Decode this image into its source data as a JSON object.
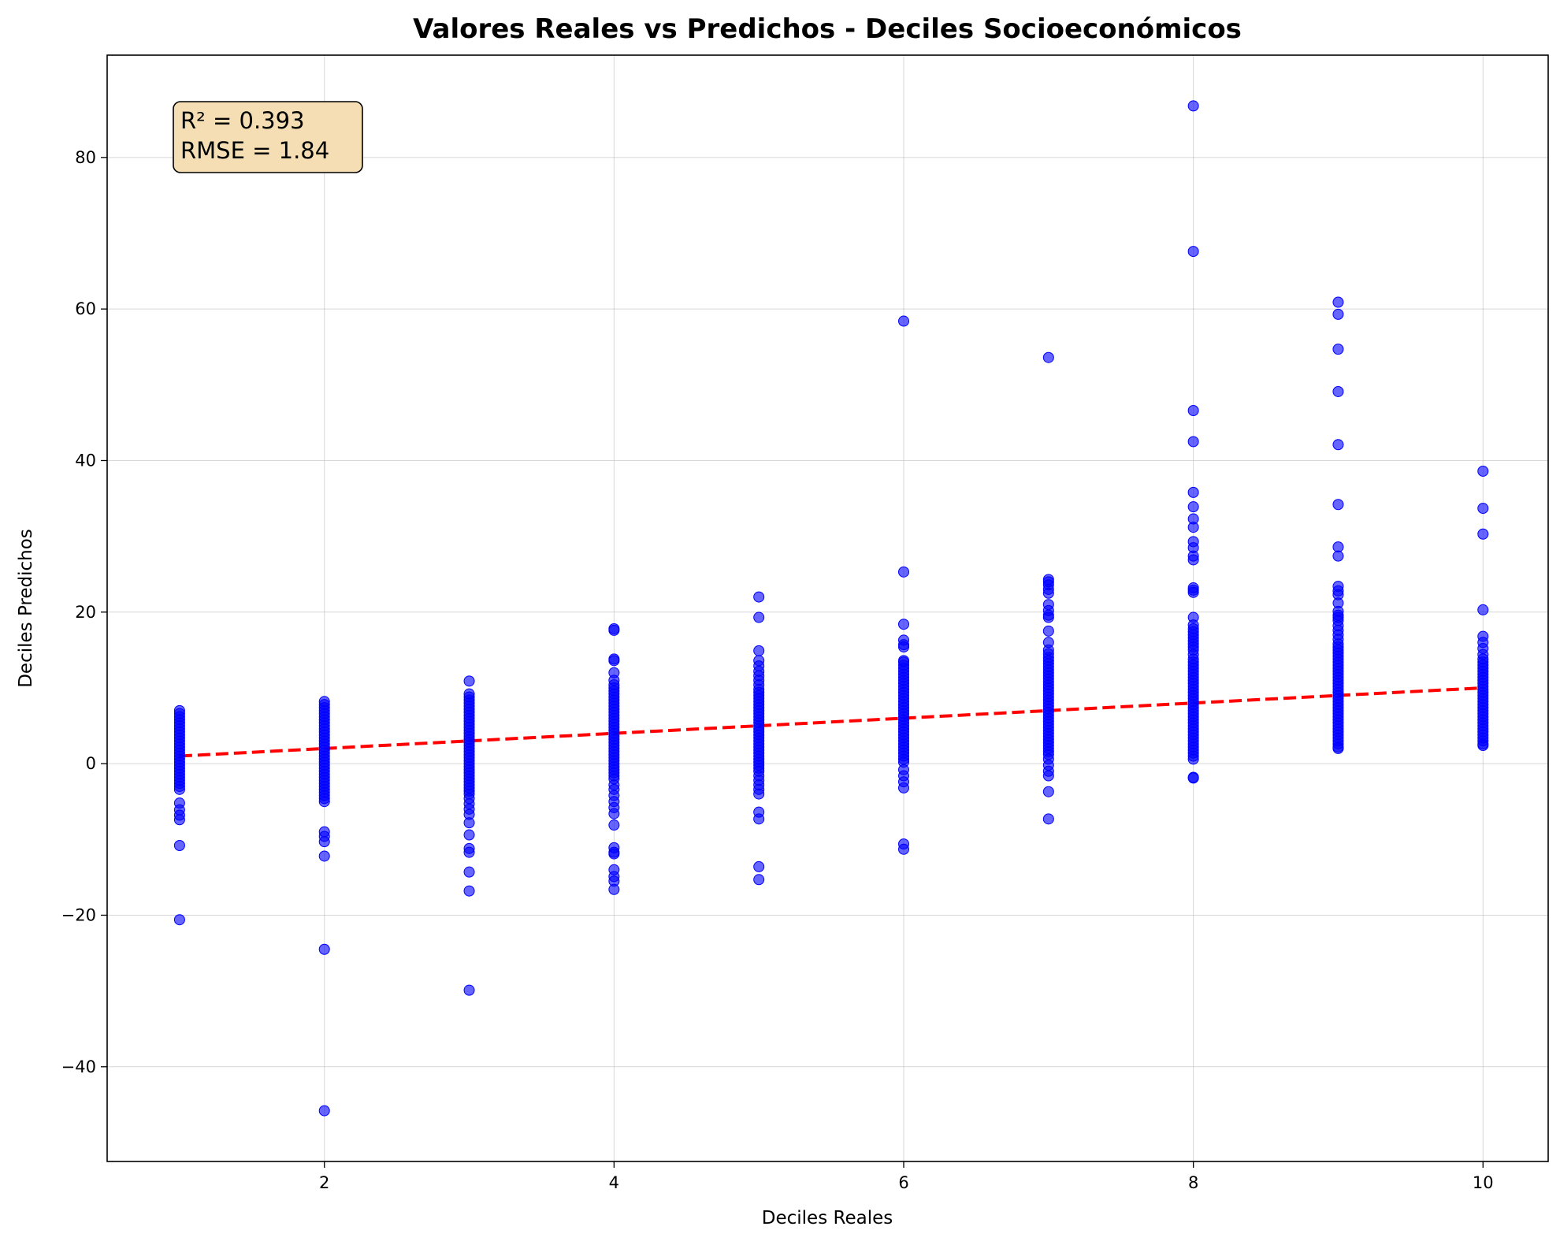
{
  "chart_data": {
    "type": "scatter",
    "title": "Valores Reales vs Predichos - Deciles Socioeconómicos",
    "xlabel": "Deciles Reales",
    "ylabel": "Deciles Predichos",
    "xlim": [
      0.5,
      10.45
    ],
    "ylim": [
      -52.5,
      93.5
    ],
    "xticks": [
      2,
      4,
      6,
      8,
      10
    ],
    "yticks": [
      -40,
      -20,
      0,
      20,
      40,
      60,
      80
    ],
    "grid": true,
    "point_color": "#0000ff",
    "reference_line": {
      "style": "dashed",
      "color": "#ff0000",
      "x": [
        1,
        10
      ],
      "y": [
        1,
        10
      ]
    },
    "annotation": {
      "r2": "R² = 0.393",
      "rmse": "RMSE = 1.84",
      "box_color": "#f5deb3"
    },
    "series": [
      {
        "x": 1,
        "y": [
          7.0,
          6.6,
          6.2,
          5.8,
          5.4,
          5.0,
          4.6,
          4.2,
          3.8,
          3.4,
          3.0,
          2.6,
          2.2,
          1.8,
          1.4,
          1.0,
          0.6,
          0.2,
          -0.2,
          -0.6,
          -1.0,
          -1.4,
          -1.8,
          -2.2,
          -2.6,
          -3.0,
          -3.4,
          -5.2,
          -6.1,
          -6.8,
          -7.4,
          -10.8,
          -20.6
        ]
      },
      {
        "x": 2,
        "y": [
          8.2,
          7.8,
          7.4,
          7.0,
          6.6,
          6.2,
          5.8,
          5.4,
          5.0,
          4.6,
          4.2,
          3.8,
          3.4,
          3.0,
          2.6,
          2.2,
          1.8,
          1.4,
          1.0,
          0.6,
          0.2,
          -0.2,
          -0.6,
          -1.0,
          -1.4,
          -1.8,
          -2.2,
          -2.6,
          -3.0,
          -3.4,
          -3.8,
          -4.2,
          -4.6,
          -5.0,
          -9.0,
          -9.6,
          -10.3,
          -12.2,
          -24.5,
          -45.8
        ]
      },
      {
        "x": 3,
        "y": [
          10.9,
          9.2,
          8.8,
          8.4,
          8.0,
          7.6,
          7.2,
          6.8,
          6.4,
          6.0,
          5.6,
          5.2,
          4.8,
          4.4,
          4.0,
          3.6,
          3.2,
          2.8,
          2.4,
          2.0,
          1.6,
          1.2,
          0.8,
          0.4,
          0.0,
          -0.4,
          -0.8,
          -1.2,
          -1.6,
          -2.0,
          -2.4,
          -2.8,
          -3.2,
          -3.6,
          -4.0,
          -4.6,
          -5.3,
          -6.0,
          -6.7,
          -7.8,
          -9.4,
          -11.2,
          -11.7,
          -14.3,
          -16.8,
          -29.9
        ]
      },
      {
        "x": 4,
        "y": [
          17.8,
          17.6,
          13.8,
          13.6,
          12.0,
          11.0,
          10.4,
          10.0,
          9.6,
          9.2,
          8.8,
          8.4,
          8.0,
          7.6,
          7.2,
          6.8,
          6.4,
          6.0,
          5.6,
          5.2,
          4.8,
          4.4,
          4.0,
          3.6,
          3.2,
          2.8,
          2.4,
          2.0,
          1.6,
          1.2,
          0.8,
          0.4,
          0.0,
          -0.4,
          -0.8,
          -1.2,
          -1.6,
          -2.0,
          -2.8,
          -3.4,
          -4.2,
          -5.0,
          -5.8,
          -6.6,
          -8.1,
          -11.1,
          -11.7,
          -11.9,
          -14.0,
          -14.9,
          -15.5,
          -16.6
        ]
      },
      {
        "x": 5,
        "y": [
          22.0,
          19.3,
          14.9,
          13.6,
          12.9,
          12.2,
          11.6,
          11.0,
          10.4,
          9.8,
          9.4,
          9.0,
          8.6,
          8.2,
          7.8,
          7.4,
          7.0,
          6.6,
          6.2,
          5.8,
          5.4,
          5.0,
          4.6,
          4.2,
          3.8,
          3.4,
          3.0,
          2.6,
          2.2,
          1.8,
          1.4,
          1.0,
          0.6,
          0.2,
          -0.2,
          -0.6,
          -1.0,
          -1.6,
          -2.2,
          -2.8,
          -3.4,
          -4.0,
          -6.4,
          -7.3,
          -13.6,
          -15.3
        ]
      },
      {
        "x": 6,
        "y": [
          58.4,
          25.3,
          18.4,
          16.3,
          15.7,
          15.4,
          13.6,
          13.4,
          13.0,
          12.6,
          12.2,
          11.8,
          11.4,
          11.0,
          10.6,
          10.2,
          9.8,
          9.4,
          9.0,
          8.6,
          8.2,
          7.8,
          7.4,
          7.0,
          6.6,
          6.2,
          5.8,
          5.4,
          5.0,
          4.6,
          4.2,
          3.8,
          3.4,
          3.0,
          2.6,
          2.2,
          1.8,
          1.4,
          1.0,
          0.6,
          0.2,
          -0.8,
          -1.6,
          -2.4,
          -3.2,
          -10.6,
          -11.3
        ]
      },
      {
        "x": 7,
        "y": [
          53.6,
          24.3,
          24.0,
          23.6,
          23.0,
          22.5,
          21.0,
          20.2,
          19.6,
          19.3,
          17.5,
          16.0,
          15.0,
          14.5,
          14.0,
          13.6,
          13.2,
          12.8,
          12.4,
          12.0,
          11.6,
          11.2,
          10.8,
          10.4,
          10.0,
          9.6,
          9.2,
          8.8,
          8.4,
          8.0,
          7.6,
          7.2,
          6.8,
          6.4,
          6.0,
          5.6,
          5.2,
          4.8,
          4.4,
          4.0,
          3.6,
          3.2,
          2.8,
          2.4,
          2.0,
          1.6,
          1.2,
          0.6,
          -0.2,
          -1.0,
          -1.6,
          -3.7,
          -7.3
        ]
      },
      {
        "x": 8,
        "y": [
          86.8,
          67.6,
          46.6,
          42.5,
          35.8,
          33.9,
          32.3,
          31.2,
          29.3,
          28.5,
          27.4,
          26.9,
          23.2,
          22.9,
          22.6,
          19.3,
          18.3,
          17.8,
          17.4,
          17.0,
          16.6,
          16.2,
          15.8,
          15.4,
          15.0,
          14.4,
          13.8,
          13.4,
          13.0,
          12.6,
          12.2,
          11.8,
          11.4,
          11.0,
          10.6,
          10.2,
          9.8,
          9.4,
          9.0,
          8.6,
          8.2,
          7.8,
          7.4,
          7.0,
          6.6,
          6.2,
          5.8,
          5.4,
          5.0,
          4.6,
          4.2,
          3.8,
          3.4,
          3.0,
          2.6,
          2.2,
          1.8,
          1.4,
          1.0,
          0.6,
          -1.8,
          -1.9
        ]
      },
      {
        "x": 9,
        "y": [
          60.9,
          59.3,
          54.7,
          49.1,
          42.1,
          34.2,
          28.6,
          27.4,
          23.4,
          22.8,
          22.3,
          21.2,
          20.1,
          19.6,
          19.3,
          18.9,
          18.2,
          17.6,
          17.0,
          16.4,
          15.8,
          15.4,
          15.0,
          14.6,
          14.2,
          13.8,
          13.4,
          13.0,
          12.6,
          12.2,
          11.8,
          11.4,
          11.0,
          10.6,
          10.2,
          9.8,
          9.4,
          9.0,
          8.6,
          8.2,
          7.8,
          7.4,
          7.0,
          6.6,
          6.2,
          5.8,
          5.4,
          5.0,
          4.6,
          4.2,
          3.8,
          3.4,
          3.0,
          2.6,
          2.2,
          2.0
        ]
      },
      {
        "x": 10,
        "y": [
          38.6,
          33.7,
          30.3,
          20.3,
          16.8,
          16.0,
          15.2,
          14.4,
          13.8,
          13.4,
          13.0,
          12.6,
          12.2,
          11.8,
          11.4,
          11.0,
          10.6,
          10.2,
          9.8,
          9.4,
          9.0,
          8.6,
          8.2,
          7.8,
          7.4,
          7.0,
          6.6,
          6.2,
          5.8,
          5.4,
          5.0,
          4.6,
          4.2,
          3.8,
          3.4,
          3.0,
          2.6,
          2.4
        ]
      }
    ]
  }
}
